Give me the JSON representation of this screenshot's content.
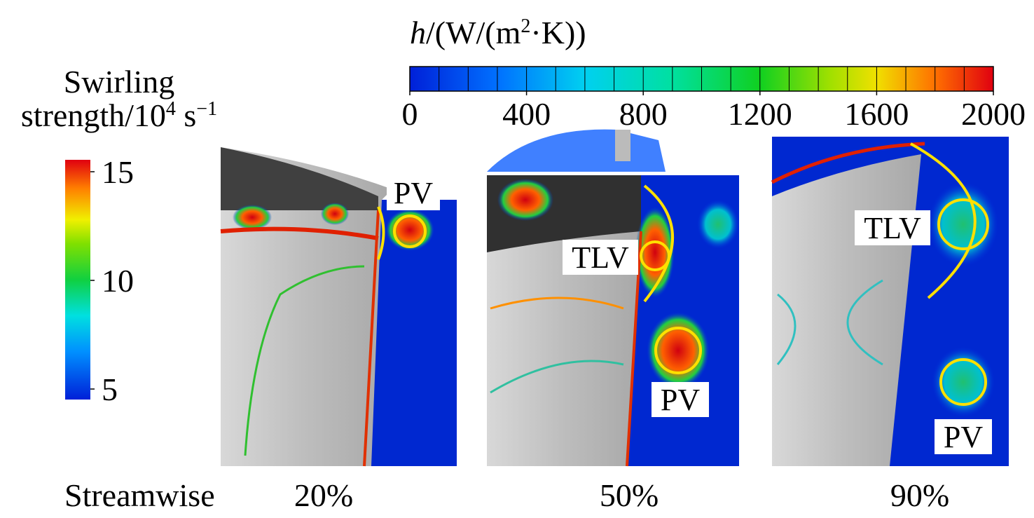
{
  "colorbar_h": {
    "title_var": "h",
    "title_unit_a": "/(W/(m",
    "title_sup": "2",
    "title_unit_b": "·K))",
    "ticks": [
      0,
      400,
      800,
      1200,
      1600,
      2000
    ]
  },
  "colorbar_swirl": {
    "title_line1": "Swirling",
    "title_line2": "strength/10",
    "title_sup1": "4",
    "title_unit": " s",
    "title_sup2": "−1",
    "ticks": [
      15,
      10,
      5
    ]
  },
  "streamwise_label": "Streamwise",
  "panels": [
    {
      "label": "20%",
      "annotations": [
        "PV"
      ]
    },
    {
      "label": "50%",
      "annotations": [
        "TLV",
        "PV"
      ]
    },
    {
      "label": "90%",
      "annotations": [
        "TLV",
        "PV"
      ]
    }
  ]
}
